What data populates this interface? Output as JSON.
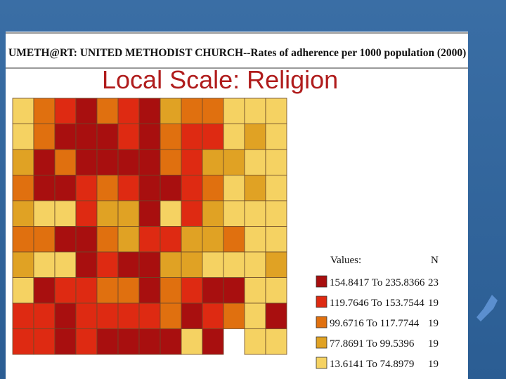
{
  "header": {
    "title": "UMETH@RT: UNITED METHODIST CHURCH--Rates of adherence per 1000 population (2000)",
    "slide_title": "Local Scale: Religion"
  },
  "legend": {
    "heading": "Values:",
    "count_heading": "N",
    "items": [
      {
        "range": "154.8417 To 235.8366",
        "count": 23,
        "color": "#a80f0f"
      },
      {
        "range": "119.7646 To 153.7544",
        "count": 19,
        "color": "#de2a12"
      },
      {
        "range": "99.6716 To 117.7744",
        "count": 19,
        "color": "#e0700f"
      },
      {
        "range": "77.8691 To 99.5396",
        "count": 19,
        "color": "#e0a224"
      },
      {
        "range": "13.6141 To 74.8979",
        "count": 19,
        "color": "#f5d262"
      }
    ]
  }
}
